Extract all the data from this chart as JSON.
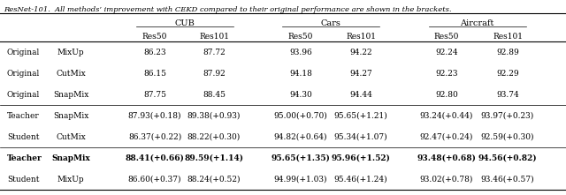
{
  "caption": "ResNet-101.  All methods’ improvement with CEKD compared to their original performance are shown in the brackets.",
  "groups": [
    "CUB",
    "Cars",
    "Aircraft"
  ],
  "subheaders": [
    "Res50",
    "Res101",
    "Res50",
    "Res101",
    "Res50",
    "Res101"
  ],
  "rows": [
    {
      "col1": "Original",
      "col2": "MixUp",
      "vals": [
        "86.23",
        "87.72",
        "93.96",
        "94.22",
        "92.24",
        "92.89"
      ],
      "bold": false
    },
    {
      "col1": "Original",
      "col2": "CutMix",
      "vals": [
        "86.15",
        "87.92",
        "94.18",
        "94.27",
        "92.23",
        "92.29"
      ],
      "bold": false
    },
    {
      "col1": "Original",
      "col2": "SnapMix",
      "vals": [
        "87.75",
        "88.45",
        "94.30",
        "94.44",
        "92.80",
        "93.74"
      ],
      "bold": false
    },
    {
      "col1": "Teacher",
      "col2": "SnapMix",
      "vals": [
        "87.93(+0.18)",
        "89.38(+0.93)",
        "95.00(+0.70)",
        "95.65(+1.21)",
        "93.24(+0.44)",
        "93.97(+0.23)"
      ],
      "bold": false
    },
    {
      "col1": "Student",
      "col2": "CutMix",
      "vals": [
        "86.37(+0.22)",
        "88.22(+0.30)",
        "94.82(+0.64)",
        "95.34(+1.07)",
        "92.47(+0.24)",
        "92.59(+0.30)"
      ],
      "bold": false
    },
    {
      "col1": "Teacher",
      "col2": "SnapMix",
      "vals": [
        "88.41(+0.66)",
        "89.59(+1.14)",
        "95.65(+1.35)",
        "95.96(+1.52)",
        "93.48(+0.68)",
        "94.56(+0.82)"
      ],
      "bold": true
    },
    {
      "col1": "Student",
      "col2": "MixUp",
      "vals": [
        "86.60(+0.37)",
        "88.24(+0.52)",
        "94.99(+1.03)",
        "95.46(+1.24)",
        "93.02(+0.78)",
        "93.46(+0.57)"
      ],
      "bold": false
    }
  ],
  "dividers_after_rows": [
    2,
    4
  ],
  "bold_row_indices": [
    5
  ],
  "figsize": [
    6.4,
    2.21
  ],
  "dpi": 100,
  "font_size": 6.5,
  "caption_font_size": 6.0
}
